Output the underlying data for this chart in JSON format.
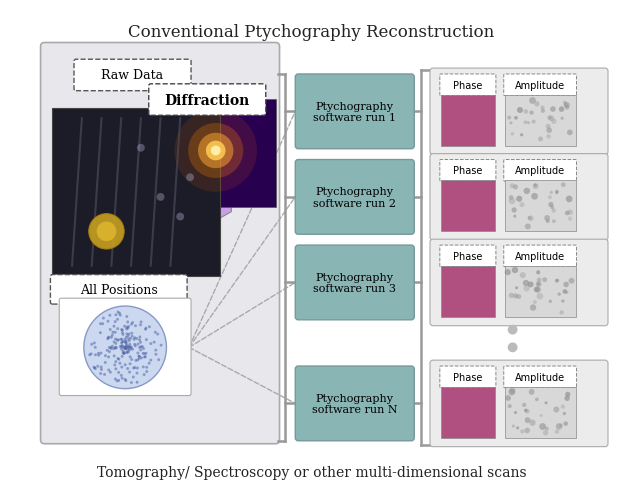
{
  "title": "Conventional Ptychography Reconstruction",
  "subtitle": "Tomography/ Spectroscopy or other multi-dimensional scans",
  "title_fontsize": 12,
  "subtitle_fontsize": 10,
  "bg_color": "#ffffff",
  "left_panel_color": "#e8e8ec",
  "left_panel_border": "#aaaaaa",
  "raw_data_label": "Raw Data",
  "diffraction_label": "Diffraction",
  "all_positions_label": "All Positions",
  "ptychography_runs": [
    "Ptychography\nsoftware run 1",
    "Ptychography\nsoftware run 2",
    "Ptychography\nsoftware run 3",
    "Ptychography\nsoftware run N"
  ],
  "run_box_color": "#8ab5b5",
  "run_box_border": "#779999",
  "phase_label": "Phase",
  "amplitude_label": "Amplitude",
  "phase_color": "#b05080",
  "amp_color": "#d8d8d8",
  "output_box_color": "#ececec",
  "output_box_border": "#aaaaaa",
  "bracket_color": "#999999",
  "dashed_color": "#aaaaaa",
  "dots_color": "#bbbbbb",
  "purple_light": "#c8a0e8",
  "purple_dark": "#5a1a8a",
  "diff_bg": "#280050"
}
